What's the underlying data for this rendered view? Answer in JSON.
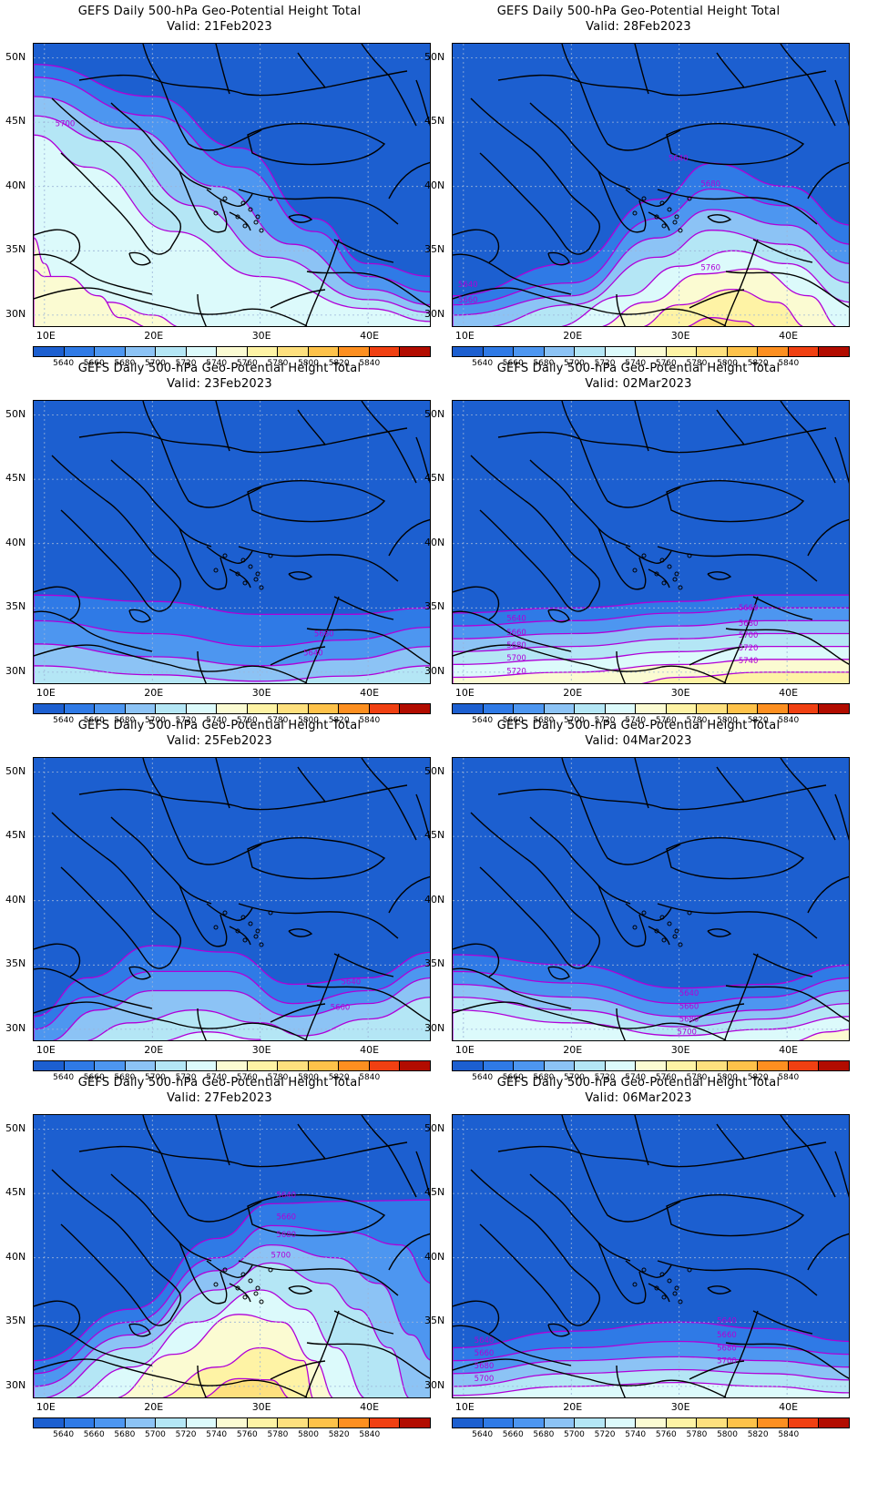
{
  "panels": [
    {
      "title": "GEFS Daily 500-hPa Geo-Potential Height Total",
      "valid": "Valid: 21Feb2023"
    },
    {
      "title": "GEFS Daily 500-hPa Geo-Potential Height Total",
      "valid": "Valid: 28Feb2023"
    },
    {
      "title": "GEFS Daily 500-hPa Geo-Potential Height Total",
      "valid": "Valid: 23Feb2023"
    },
    {
      "title": "GEFS Daily 500-hPa Geo-Potential Height Total",
      "valid": "Valid: 02Mar2023"
    },
    {
      "title": "GEFS Daily 500-hPa Geo-Potential Height Total",
      "valid": "Valid: 25Feb2023"
    },
    {
      "title": "GEFS Daily 500-hPa Geo-Potential Height Total",
      "valid": "Valid: 04Mar2023"
    },
    {
      "title": "GEFS Daily 500-hPa Geo-Potential Height Total",
      "valid": "Valid: 27Feb2023"
    },
    {
      "title": "GEFS Daily 500-hPa Geo-Potential Height Total",
      "valid": "Valid: 06Mar2023"
    }
  ],
  "axes": {
    "lat_labels": [
      "50N",
      "45N",
      "40N",
      "35N",
      "30N"
    ],
    "lon_labels": [
      "10E",
      "20E",
      "30E",
      "40E"
    ]
  },
  "colorbar": {
    "colors": [
      "#1c5fd0",
      "#2f7ae6",
      "#4d96f0",
      "#8cc3f5",
      "#b4e6f5",
      "#dcfafb",
      "#fbfbd2",
      "#fef3a5",
      "#fee07e",
      "#fec24a",
      "#fd8f20",
      "#f04012",
      "#b20c00"
    ],
    "labels": [
      "5640",
      "5660",
      "5680",
      "5700",
      "5720",
      "5740",
      "5760",
      "5780",
      "5800",
      "5820",
      "5840"
    ]
  },
  "contour_labels": {
    "p0": [
      "5700"
    ],
    "p1": [
      "5640",
      "5680",
      "5760",
      "5640",
      "5660"
    ],
    "p2": [
      "5660",
      "5640"
    ],
    "p3": [
      "5640",
      "5660",
      "5680",
      "5700",
      "5720",
      "5660",
      "5680",
      "5700",
      "5720",
      "5740"
    ],
    "p4": [
      "5640",
      "5660"
    ],
    "p5": [
      "5640",
      "5660",
      "5680",
      "5700"
    ],
    "p6": [
      "5640",
      "5660",
      "5680",
      "5700"
    ],
    "p7": [
      "5640",
      "5660",
      "5680",
      "5700",
      "5640",
      "5660",
      "5680",
      "5700"
    ]
  },
  "style": {
    "background": "#1c5fd0",
    "contour_color": "#b000d8",
    "coast_color": "#000000"
  }
}
